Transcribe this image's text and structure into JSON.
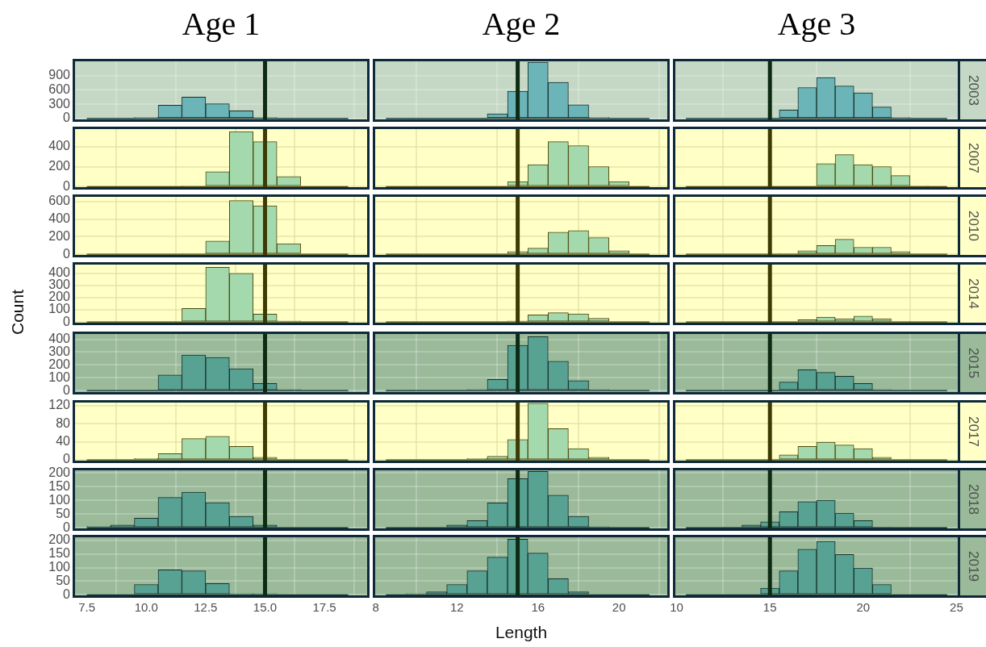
{
  "chart_data": [
    {
      "type": "histogram",
      "title": "Age 1",
      "bins": [
        7.5,
        8.5,
        9.5,
        10.5,
        11.5,
        12.5,
        13.5,
        14.5,
        15.5,
        16.5,
        17.5,
        18.5
      ],
      "values": [
        0,
        0,
        20,
        280,
        450,
        310,
        160,
        20,
        0,
        0,
        0
      ],
      "color": "#6bb4b8",
      "xlim": [
        6.9,
        19.4
      ],
      "xticks": [
        7.5,
        10,
        12.5,
        15,
        17.5
      ],
      "ylim": [
        -70,
        1250
      ],
      "yticks": [
        0,
        300,
        600,
        900
      ],
      "grid": true,
      "tick_labels": "y",
      "ref_lines": [
        {
          "axis": "x",
          "value": 15,
          "color": "#0d2a12"
        }
      ]
    },
    {
      "type": "histogram",
      "title": "Age 2",
      "bins": [
        8.5,
        9.5,
        10.5,
        11.5,
        12.5,
        13.5,
        14.5,
        15.5,
        16.5,
        17.5,
        18.5,
        19.5,
        20.5,
        21.5
      ],
      "values": [
        0,
        0,
        0,
        0,
        0,
        100,
        570,
        1180,
        760,
        290,
        20,
        0,
        0
      ],
      "color": "#6bb4b8",
      "xlim": [
        7.85,
        22.5
      ],
      "xticks": [
        8,
        12,
        16,
        20
      ],
      "ylim": [
        -70,
        1250
      ],
      "yticks": [
        0,
        300,
        600,
        900
      ],
      "grid": true,
      "tick_labels": false,
      "ref_lines": [
        {
          "axis": "x",
          "value": 15,
          "color": "#0d2a12"
        }
      ]
    },
    {
      "type": "histogram",
      "title": "Age 3",
      "bins": [
        10.5,
        11.5,
        12.5,
        13.5,
        14.5,
        15.5,
        16.5,
        17.5,
        18.5,
        19.5,
        20.5,
        21.5,
        22.5,
        23.5,
        24.5
      ],
      "values": [
        0,
        0,
        0,
        0,
        0,
        180,
        650,
        860,
        680,
        540,
        240,
        20,
        0,
        0
      ],
      "color": "#6bb4b8",
      "xlim": [
        9.8,
        25.2
      ],
      "xticks": [
        10,
        15,
        20,
        25
      ],
      "ylim": [
        -70,
        1250
      ],
      "yticks": [
        0,
        300,
        600,
        900
      ],
      "grid": true,
      "tick_labels": false,
      "ref_lines": [
        {
          "axis": "x",
          "value": 15,
          "color": "#0d2a12"
        }
      ],
      "annotations": [
        "2003"
      ]
    },
    {
      "type": "histogram",
      "bins": [
        7.5,
        8.5,
        9.5,
        10.5,
        11.5,
        12.5,
        13.5,
        14.5,
        15.5,
        16.5,
        17.5,
        18.5
      ],
      "values": [
        0,
        0,
        0,
        0,
        10,
        150,
        550,
        450,
        100,
        0,
        0
      ],
      "color": "#a3d9ac",
      "xlim": [
        6.9,
        19.4
      ],
      "xticks": [
        7.5,
        10,
        12.5,
        15,
        17.5
      ],
      "ylim": [
        -30,
        600
      ],
      "yticks": [
        0,
        200,
        400
      ],
      "grid": true,
      "tick_labels": "y",
      "ref_lines": [
        {
          "axis": "x",
          "value": 15,
          "color": "#3d3a05"
        }
      ]
    },
    {
      "type": "histogram",
      "bins": [
        8.5,
        9.5,
        10.5,
        11.5,
        12.5,
        13.5,
        14.5,
        15.5,
        16.5,
        17.5,
        18.5,
        19.5,
        20.5,
        21.5
      ],
      "values": [
        0,
        0,
        0,
        0,
        0,
        0,
        50,
        220,
        450,
        410,
        200,
        50,
        0
      ],
      "color": "#a3d9ac",
      "xlim": [
        7.85,
        22.5
      ],
      "xticks": [
        8,
        12,
        16,
        20
      ],
      "ylim": [
        -30,
        600
      ],
      "yticks": [
        0,
        200,
        400
      ],
      "grid": true,
      "tick_labels": false,
      "ref_lines": [
        {
          "axis": "x",
          "value": 15,
          "color": "#3d3a05"
        }
      ]
    },
    {
      "type": "histogram",
      "bins": [
        10.5,
        11.5,
        12.5,
        13.5,
        14.5,
        15.5,
        16.5,
        17.5,
        18.5,
        19.5,
        20.5,
        21.5,
        22.5,
        23.5,
        24.5
      ],
      "values": [
        0,
        0,
        0,
        0,
        0,
        0,
        0,
        230,
        320,
        220,
        200,
        110,
        10,
        0
      ],
      "color": "#a3d9ac",
      "xlim": [
        9.8,
        25.2
      ],
      "xticks": [
        10,
        15,
        20,
        25
      ],
      "ylim": [
        -30,
        600
      ],
      "yticks": [
        0,
        200,
        400
      ],
      "grid": true,
      "tick_labels": false,
      "ref_lines": [
        {
          "axis": "x",
          "value": 15,
          "color": "#3d3a05"
        }
      ],
      "annotations": [
        "2007"
      ]
    },
    {
      "type": "histogram",
      "bins": [
        7.5,
        8.5,
        9.5,
        10.5,
        11.5,
        12.5,
        13.5,
        14.5,
        15.5,
        16.5,
        17.5,
        18.5
      ],
      "values": [
        0,
        0,
        0,
        0,
        10,
        150,
        610,
        550,
        120,
        0,
        0
      ],
      "color": "#a3d9ac",
      "xlim": [
        6.9,
        19.4
      ],
      "xticks": [
        7.5,
        10,
        12.5,
        15,
        17.5
      ],
      "ylim": [
        -35,
        680
      ],
      "yticks": [
        0,
        200,
        400,
        600
      ],
      "grid": true,
      "tick_labels": "y",
      "ref_lines": [
        {
          "axis": "x",
          "value": 15,
          "color": "#3d3a05"
        }
      ]
    },
    {
      "type": "histogram",
      "bins": [
        8.5,
        9.5,
        10.5,
        11.5,
        12.5,
        13.5,
        14.5,
        15.5,
        16.5,
        17.5,
        18.5,
        19.5,
        20.5,
        21.5
      ],
      "values": [
        0,
        0,
        0,
        0,
        0,
        0,
        30,
        70,
        250,
        270,
        190,
        40,
        0
      ],
      "color": "#a3d9ac",
      "xlim": [
        7.85,
        22.5
      ],
      "xticks": [
        8,
        12,
        16,
        20
      ],
      "ylim": [
        -35,
        680
      ],
      "yticks": [
        0,
        200,
        400,
        600
      ],
      "grid": true,
      "tick_labels": false,
      "ref_lines": [
        {
          "axis": "x",
          "value": 15,
          "color": "#3d3a05"
        }
      ]
    },
    {
      "type": "histogram",
      "bins": [
        10.5,
        11.5,
        12.5,
        13.5,
        14.5,
        15.5,
        16.5,
        17.5,
        18.5,
        19.5,
        20.5,
        21.5,
        22.5,
        23.5,
        24.5
      ],
      "values": [
        0,
        0,
        0,
        0,
        0,
        10,
        40,
        100,
        170,
        80,
        80,
        30,
        0,
        0
      ],
      "color": "#a3d9ac",
      "xlim": [
        9.8,
        25.2
      ],
      "xticks": [
        10,
        15,
        20,
        25
      ],
      "ylim": [
        -35,
        680
      ],
      "yticks": [
        0,
        200,
        400,
        600
      ],
      "grid": true,
      "tick_labels": false,
      "ref_lines": [
        {
          "axis": "x",
          "value": 15,
          "color": "#3d3a05"
        }
      ],
      "annotations": [
        "2010"
      ]
    },
    {
      "type": "histogram",
      "bins": [
        7.5,
        8.5,
        9.5,
        10.5,
        11.5,
        12.5,
        13.5,
        14.5,
        15.5,
        16.5,
        17.5,
        18.5
      ],
      "values": [
        0,
        0,
        0,
        0,
        112,
        449,
        398,
        65,
        9,
        0,
        0
      ],
      "color": "#a3d9ac",
      "xlim": [
        6.9,
        19.4
      ],
      "xticks": [
        7.5,
        10,
        12.5,
        15,
        17.5
      ],
      "ylim": [
        -25,
        490
      ],
      "yticks": [
        0,
        100,
        200,
        300,
        400
      ],
      "grid": true,
      "tick_labels": "y",
      "ref_lines": [
        {
          "axis": "x",
          "value": 15,
          "color": "#3d3a05"
        }
      ],
      "ylabel": "Count"
    },
    {
      "type": "histogram",
      "bins": [
        8.5,
        9.5,
        10.5,
        11.5,
        12.5,
        13.5,
        14.5,
        15.5,
        16.5,
        17.5,
        18.5,
        19.5,
        20.5,
        21.5
      ],
      "values": [
        0,
        0,
        0,
        0,
        0,
        0,
        9,
        58,
        77,
        67,
        30,
        0,
        0
      ],
      "color": "#a3d9ac",
      "xlim": [
        7.85,
        22.5
      ],
      "xticks": [
        8,
        12,
        16,
        20
      ],
      "ylim": [
        -25,
        490
      ],
      "yticks": [
        0,
        100,
        200,
        300,
        400
      ],
      "grid": true,
      "tick_labels": false,
      "ref_lines": [
        {
          "axis": "x",
          "value": 15,
          "color": "#3d3a05"
        }
      ]
    },
    {
      "type": "histogram",
      "bins": [
        10.5,
        11.5,
        12.5,
        13.5,
        14.5,
        15.5,
        16.5,
        17.5,
        18.5,
        19.5,
        20.5,
        21.5,
        22.5,
        23.5,
        24.5
      ],
      "values": [
        0,
        0,
        0,
        0,
        0,
        0,
        19,
        40,
        28,
        49,
        28,
        7,
        0,
        0
      ],
      "color": "#a3d9ac",
      "xlim": [
        9.8,
        25.2
      ],
      "xticks": [
        10,
        15,
        20,
        25
      ],
      "ylim": [
        -25,
        490
      ],
      "yticks": [
        0,
        100,
        200,
        300,
        400
      ],
      "grid": true,
      "tick_labels": false,
      "ref_lines": [
        {
          "axis": "x",
          "value": 15,
          "color": "#3d3a05"
        }
      ],
      "annotations": [
        "2014"
      ]
    },
    {
      "type": "histogram",
      "bins": [
        7.5,
        8.5,
        9.5,
        10.5,
        11.5,
        12.5,
        13.5,
        14.5,
        15.5,
        16.5,
        17.5,
        18.5
      ],
      "values": [
        0,
        0,
        0,
        122,
        278,
        258,
        171,
        56,
        9,
        0,
        0
      ],
      "color": "#58a294",
      "xlim": [
        6.9,
        19.4
      ],
      "xticks": [
        7.5,
        10,
        12.5,
        15,
        17.5
      ],
      "ylim": [
        -30,
        460
      ],
      "yticks": [
        0,
        100,
        200,
        300,
        400
      ],
      "grid": true,
      "tick_labels": "y",
      "ref_lines": [
        {
          "axis": "x",
          "value": 15,
          "color": "#0d2a12"
        }
      ]
    },
    {
      "type": "histogram",
      "bins": [
        8.5,
        9.5,
        10.5,
        11.5,
        12.5,
        13.5,
        14.5,
        15.5,
        16.5,
        17.5,
        18.5,
        19.5,
        20.5,
        21.5
      ],
      "values": [
        0,
        0,
        0,
        0,
        9,
        87,
        353,
        420,
        229,
        78,
        9,
        0,
        0
      ],
      "color": "#58a294",
      "xlim": [
        7.85,
        22.5
      ],
      "xticks": [
        8,
        12,
        16,
        20
      ],
      "ylim": [
        -30,
        460
      ],
      "yticks": [
        0,
        100,
        200,
        300,
        400
      ],
      "grid": true,
      "tick_labels": false,
      "ref_lines": [
        {
          "axis": "x",
          "value": 15,
          "color": "#0d2a12"
        }
      ]
    },
    {
      "type": "histogram",
      "bins": [
        10.5,
        11.5,
        12.5,
        13.5,
        14.5,
        15.5,
        16.5,
        17.5,
        18.5,
        19.5,
        20.5,
        21.5,
        22.5,
        23.5,
        24.5
      ],
      "values": [
        0,
        0,
        0,
        0,
        0,
        67,
        162,
        142,
        113,
        56,
        9,
        0,
        0,
        0
      ],
      "color": "#58a294",
      "xlim": [
        9.8,
        25.2
      ],
      "xticks": [
        10,
        15,
        20,
        25
      ],
      "ylim": [
        -30,
        460
      ],
      "yticks": [
        0,
        100,
        200,
        300,
        400
      ],
      "grid": true,
      "tick_labels": false,
      "ref_lines": [
        {
          "axis": "x",
          "value": 15,
          "color": "#0d2a12"
        }
      ],
      "annotations": [
        "2015"
      ]
    },
    {
      "type": "histogram",
      "bins": [
        7.5,
        8.5,
        9.5,
        10.5,
        11.5,
        12.5,
        13.5,
        14.5,
        15.5,
        16.5,
        17.5,
        18.5
      ],
      "values": [
        0,
        0,
        3,
        14,
        47,
        52,
        30,
        6,
        0,
        0,
        0
      ],
      "color": "#a3d9ac",
      "xlim": [
        6.9,
        19.4
      ],
      "xticks": [
        7.5,
        10,
        12.5,
        15,
        17.5
      ],
      "ylim": [
        -7,
        132
      ],
      "yticks": [
        0,
        40,
        80,
        120
      ],
      "grid": true,
      "tick_labels": "y",
      "ref_lines": [
        {
          "axis": "x",
          "value": 15,
          "color": "#3d3a05"
        }
      ]
    },
    {
      "type": "histogram",
      "bins": [
        8.5,
        9.5,
        10.5,
        11.5,
        12.5,
        13.5,
        14.5,
        15.5,
        16.5,
        17.5,
        18.5,
        19.5,
        20.5,
        21.5
      ],
      "values": [
        0,
        0,
        0,
        0,
        3,
        8,
        45,
        125,
        69,
        25,
        6,
        0,
        0
      ],
      "color": "#a3d9ac",
      "xlim": [
        7.85,
        22.5
      ],
      "xticks": [
        8,
        12,
        16,
        20
      ],
      "ylim": [
        -7,
        132
      ],
      "yticks": [
        0,
        40,
        80,
        120
      ],
      "grid": true,
      "tick_labels": false,
      "ref_lines": [
        {
          "axis": "x",
          "value": 15,
          "color": "#3d3a05"
        }
      ]
    },
    {
      "type": "histogram",
      "bins": [
        10.5,
        11.5,
        12.5,
        13.5,
        14.5,
        15.5,
        16.5,
        17.5,
        18.5,
        19.5,
        20.5,
        21.5,
        22.5,
        23.5,
        24.5
      ],
      "values": [
        0,
        0,
        0,
        0,
        0,
        11,
        30,
        39,
        33,
        25,
        6,
        0,
        0,
        0
      ],
      "color": "#a3d9ac",
      "xlim": [
        9.8,
        25.2
      ],
      "xticks": [
        10,
        15,
        20,
        25
      ],
      "ylim": [
        -7,
        132
      ],
      "yticks": [
        0,
        40,
        80,
        120
      ],
      "grid": true,
      "tick_labels": false,
      "ref_lines": [
        {
          "axis": "x",
          "value": 15,
          "color": "#3d3a05"
        }
      ],
      "annotations": [
        "2017"
      ]
    },
    {
      "type": "histogram",
      "bins": [
        7.5,
        8.5,
        9.5,
        10.5,
        11.5,
        12.5,
        13.5,
        14.5,
        15.5,
        16.5,
        17.5,
        18.5
      ],
      "values": [
        5,
        10,
        35,
        111,
        130,
        92,
        42,
        10,
        0,
        0,
        0
      ],
      "color": "#58a294",
      "xlim": [
        6.9,
        19.4
      ],
      "xticks": [
        7.5,
        10,
        12.5,
        15,
        17.5
      ],
      "ylim": [
        -11,
        219
      ],
      "yticks": [
        0,
        50,
        100,
        150,
        200
      ],
      "grid": true,
      "tick_labels": "y",
      "ref_lines": [
        {
          "axis": "x",
          "value": 15,
          "color": "#0d2a12"
        }
      ]
    },
    {
      "type": "histogram",
      "bins": [
        8.5,
        9.5,
        10.5,
        11.5,
        12.5,
        13.5,
        14.5,
        15.5,
        16.5,
        17.5,
        18.5,
        19.5,
        20.5,
        21.5
      ],
      "values": [
        0,
        0,
        0,
        10,
        26,
        91,
        180,
        206,
        119,
        42,
        4,
        0,
        0
      ],
      "color": "#58a294",
      "xlim": [
        7.85,
        22.5
      ],
      "xticks": [
        8,
        12,
        16,
        20
      ],
      "ylim": [
        -11,
        219
      ],
      "yticks": [
        0,
        50,
        100,
        150,
        200
      ],
      "grid": true,
      "tick_labels": false,
      "ref_lines": [
        {
          "axis": "x",
          "value": 15,
          "color": "#0d2a12"
        }
      ]
    },
    {
      "type": "histogram",
      "bins": [
        10.5,
        11.5,
        12.5,
        13.5,
        14.5,
        15.5,
        16.5,
        17.5,
        18.5,
        19.5,
        20.5,
        21.5,
        22.5,
        23.5,
        24.5
      ],
      "values": [
        0,
        0,
        3,
        10,
        22,
        59,
        96,
        101,
        54,
        26,
        3,
        0,
        0,
        0
      ],
      "color": "#58a294",
      "xlim": [
        9.8,
        25.2
      ],
      "xticks": [
        10,
        15,
        20,
        25
      ],
      "ylim": [
        -11,
        219
      ],
      "yticks": [
        0,
        50,
        100,
        150,
        200
      ],
      "grid": true,
      "tick_labels": false,
      "ref_lines": [
        {
          "axis": "x",
          "value": 15,
          "color": "#0d2a12"
        }
      ],
      "annotations": [
        "2018"
      ]
    },
    {
      "type": "histogram",
      "bins": [
        7.5,
        8.5,
        9.5,
        10.5,
        11.5,
        12.5,
        13.5,
        14.5,
        15.5,
        16.5,
        17.5,
        18.5
      ],
      "values": [
        0,
        0,
        38,
        92,
        88,
        41,
        4,
        4,
        0,
        0,
        0
      ],
      "color": "#58a294",
      "xlim": [
        6.9,
        19.4
      ],
      "xticks": [
        7.5,
        {
          "value": 10,
          "label": "10.0"
        },
        12.5,
        {
          "value": 15,
          "label": "15.0"
        },
        17.5
      ],
      "ylim": [
        -11,
        220
      ],
      "yticks": [
        0,
        50,
        100,
        150,
        200
      ],
      "grid": true,
      "ref_lines": [
        {
          "axis": "x",
          "value": 15,
          "color": "#0d2a12"
        }
      ]
    },
    {
      "type": "histogram",
      "bins": [
        8.5,
        9.5,
        10.5,
        11.5,
        12.5,
        13.5,
        14.5,
        15.5,
        16.5,
        17.5,
        18.5,
        19.5,
        20.5,
        21.5
      ],
      "values": [
        0,
        4,
        11,
        38,
        88,
        138,
        204,
        153,
        59,
        11,
        0,
        0,
        0
      ],
      "color": "#58a294",
      "xlim": [
        7.85,
        22.5
      ],
      "xticks": [
        8,
        12,
        16,
        20
      ],
      "ylim": [
        -11,
        220
      ],
      "yticks": [
        0,
        50,
        100,
        150,
        200
      ],
      "grid": true,
      "tick_labels": "x",
      "ref_lines": [
        {
          "axis": "x",
          "value": 15,
          "color": "#0d2a12"
        }
      ],
      "xlabel": "Length"
    },
    {
      "type": "histogram",
      "bins": [
        10.5,
        11.5,
        12.5,
        13.5,
        14.5,
        15.5,
        16.5,
        17.5,
        18.5,
        19.5,
        20.5,
        21.5,
        22.5,
        23.5,
        24.5
      ],
      "values": [
        0,
        0,
        0,
        0,
        24,
        88,
        167,
        196,
        148,
        98,
        38,
        0,
        0,
        0
      ],
      "color": "#58a294",
      "xlim": [
        9.8,
        25.2
      ],
      "xticks": [
        10,
        15,
        20,
        25
      ],
      "ylim": [
        -11,
        220
      ],
      "yticks": [
        0,
        50,
        100,
        150,
        200
      ],
      "grid": true,
      "tick_labels": "x",
      "ref_lines": [
        {
          "axis": "x",
          "value": 15,
          "color": "#0d2a12"
        }
      ],
      "annotations": [
        "2019"
      ]
    }
  ]
}
